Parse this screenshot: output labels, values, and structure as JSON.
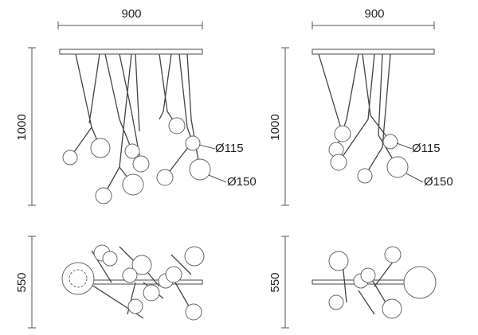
{
  "views": [
    {
      "width_label": "900",
      "height_label": "1000",
      "callouts": [
        "Ø115",
        "Ø150"
      ]
    },
    {
      "width_label": "900",
      "height_label": "1000",
      "callouts": [
        "Ø115",
        "Ø150"
      ]
    },
    {
      "depth_label": "550"
    },
    {
      "depth_label": "550"
    }
  ]
}
